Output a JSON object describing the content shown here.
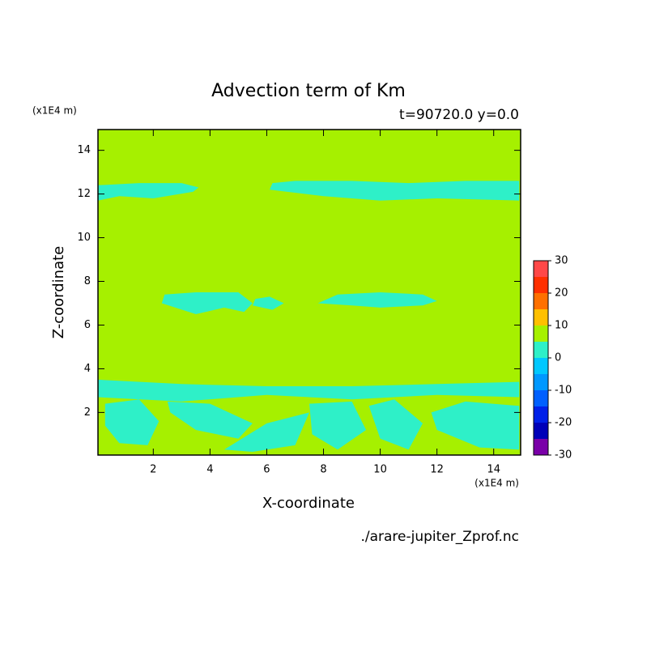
{
  "chart_data": {
    "type": "contour",
    "title": "Advection term of Km",
    "subtitle": "t=90720.0 y=0.0",
    "x_label": "X-coordinate",
    "y_label": "Z-coordinate",
    "x_unit": "(x1E4 m)",
    "y_unit": "(x1E4 m)",
    "source": "./arare-jupiter_Zprof.nc",
    "xlim": [
      0.05,
      14.95
    ],
    "ylim": [
      0.05,
      14.95
    ],
    "xticks": [
      2,
      4,
      6,
      8,
      10,
      12,
      14
    ],
    "yticks": [
      2,
      4,
      6,
      8,
      10,
      12,
      14
    ],
    "fill_color": "#a6f000",
    "regions": [
      {
        "color": "#2ef0c8",
        "x": [
          0.05,
          0.8,
          2.0,
          3.4,
          3.6,
          3.0,
          1.5,
          0.05
        ],
        "y": [
          11.7,
          11.9,
          11.8,
          12.1,
          12.3,
          12.5,
          12.5,
          12.4
        ]
      },
      {
        "color": "#2ef0c8",
        "x": [
          6.1,
          8,
          10,
          12,
          14.9,
          14.9,
          13,
          11,
          9,
          7,
          6.2
        ],
        "y": [
          12.2,
          11.9,
          11.7,
          11.8,
          11.7,
          12.6,
          12.6,
          12.5,
          12.6,
          12.6,
          12.5
        ]
      },
      {
        "color": "#2ef0c8",
        "x": [
          2.3,
          3.5,
          4.5,
          5.2,
          5.5,
          5.0,
          3.5,
          2.4
        ],
        "y": [
          7.0,
          6.5,
          6.8,
          6.6,
          7.0,
          7.5,
          7.5,
          7.4
        ]
      },
      {
        "color": "#2ef0c8",
        "x": [
          5.5,
          6.2,
          6.6,
          6.1,
          5.6
        ],
        "y": [
          6.9,
          6.7,
          7.0,
          7.3,
          7.2
        ]
      },
      {
        "color": "#2ef0c8",
        "x": [
          7.8,
          9,
          10,
          11.5,
          12,
          11.5,
          10,
          8.5
        ],
        "y": [
          7.0,
          6.9,
          6.8,
          6.9,
          7.1,
          7.4,
          7.5,
          7.4
        ]
      },
      {
        "color": "#2ef0c8",
        "x": [
          0.05,
          3,
          6,
          9,
          12,
          14.9,
          14.9,
          12,
          9,
          6,
          3,
          0.05
        ],
        "y": [
          3.5,
          3.3,
          3.2,
          3.2,
          3.3,
          3.4,
          2.7,
          2.8,
          2.6,
          2.8,
          2.5,
          2.7
        ]
      },
      {
        "color": "#2ef0c8",
        "x": [
          0.3,
          1.5,
          2.2,
          1.8,
          0.8,
          0.3
        ],
        "y": [
          2.4,
          2.6,
          1.6,
          0.5,
          0.6,
          1.4
        ]
      },
      {
        "color": "#2ef0c8",
        "x": [
          2.5,
          4,
          5.5,
          5,
          3.5,
          2.6
        ],
        "y": [
          2.5,
          2.4,
          1.5,
          0.8,
          1.2,
          2.0
        ]
      },
      {
        "color": "#2ef0c8",
        "x": [
          4.5,
          6,
          7.5,
          7,
          5.5
        ],
        "y": [
          0.3,
          1.5,
          2.0,
          0.5,
          0.2
        ]
      },
      {
        "color": "#2ef0c8",
        "x": [
          7.5,
          9,
          9.5,
          8.5,
          7.6
        ],
        "y": [
          2.4,
          2.5,
          1.2,
          0.3,
          1.0
        ]
      },
      {
        "color": "#2ef0c8",
        "x": [
          9.6,
          10.5,
          11.5,
          11,
          10
        ],
        "y": [
          2.3,
          2.6,
          1.5,
          0.3,
          0.8
        ]
      },
      {
        "color": "#2ef0c8",
        "x": [
          11.8,
          13,
          14.9,
          14.9,
          13.5,
          12
        ],
        "y": [
          2.0,
          2.5,
          2.3,
          0.3,
          0.4,
          1.2
        ]
      }
    ],
    "colorbar": {
      "bounds": [
        -30,
        -25,
        -20,
        -15,
        -10,
        -5,
        0,
        5,
        10,
        15,
        20,
        25,
        30
      ],
      "colors": [
        "#7a00a8",
        "#0000b8",
        "#0020e8",
        "#0060ff",
        "#0098ff",
        "#00c8ff",
        "#2ef0c8",
        "#a6f000",
        "#ffc000",
        "#ff7000",
        "#ff3000",
        "#ff4848",
        "#ffaaaa"
      ],
      "ticks": [
        -30,
        -20,
        -10,
        0,
        10,
        20,
        30
      ]
    }
  }
}
